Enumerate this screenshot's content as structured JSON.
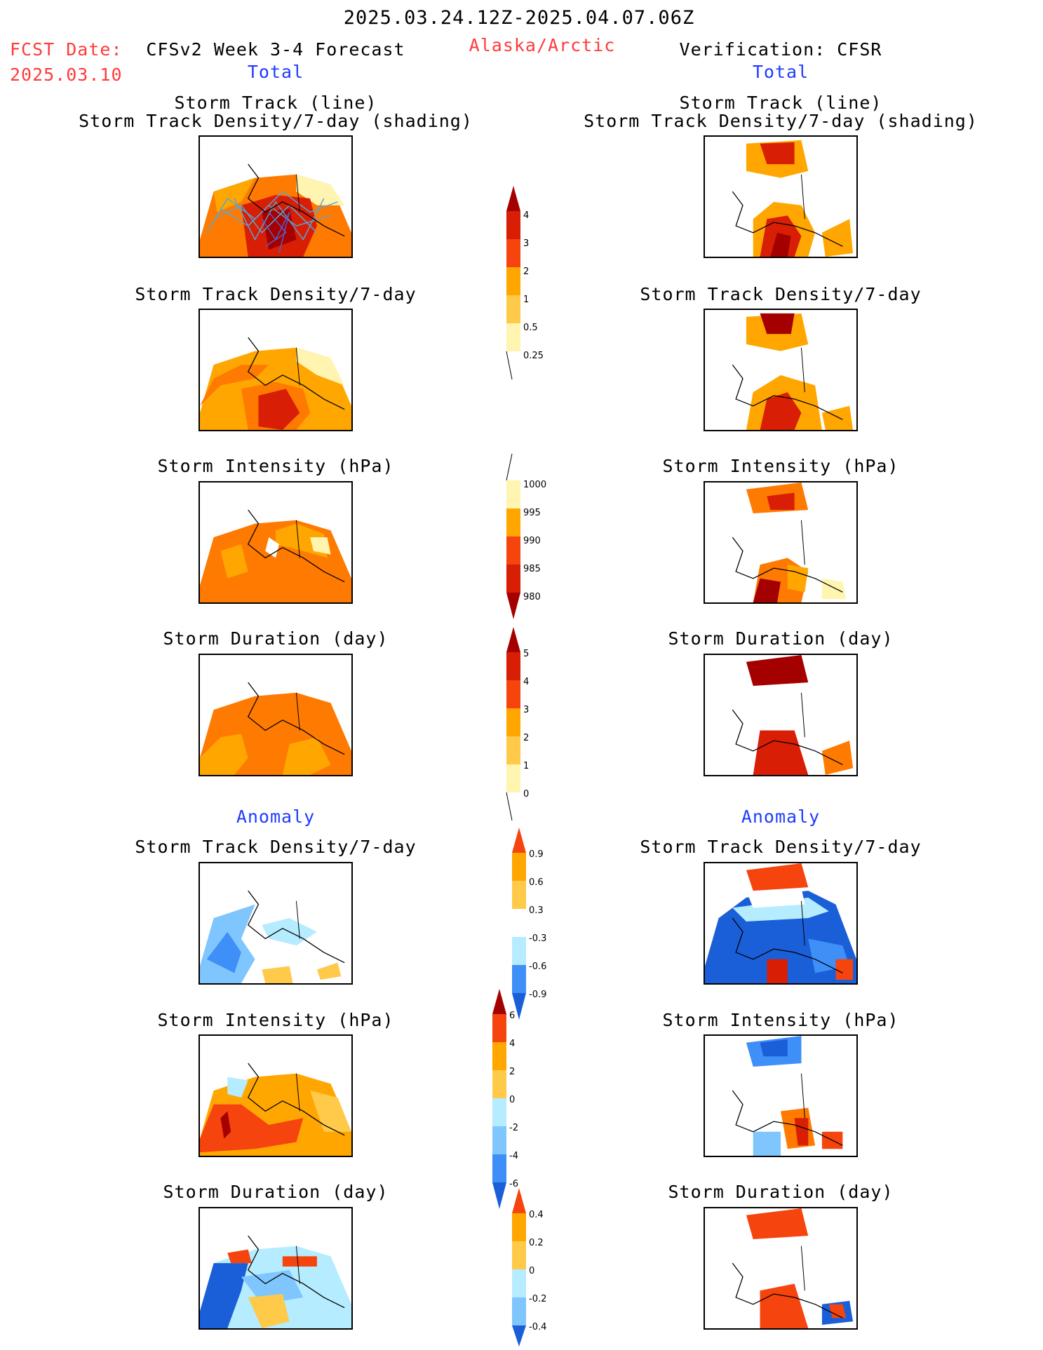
{
  "header": {
    "period": "2025.03.24.12Z-2025.04.07.06Z",
    "fcst_date_label": "FCST Date:",
    "fcst_date_value": "2025.03.10",
    "forecast_title": "CFSv2 Week 3-4 Forecast",
    "region": "Alaska/Arctic",
    "verification_title": "Verification: CFSR"
  },
  "sections": {
    "total_left": "Total",
    "total_right": "Total",
    "anomaly_left": "Anomaly",
    "anomaly_right": "Anomaly"
  },
  "panels": {
    "track_line": "Storm Track (line)",
    "track_density_shading": "Storm Track Density/7-day (shading)",
    "track_density": "Storm Track Density/7-day",
    "intensity": "Storm Intensity (hPa)",
    "duration": "Storm Duration (day)"
  },
  "colorbars": {
    "density_total": [
      "4",
      "3",
      "2",
      "1",
      "0.5",
      "0.25"
    ],
    "intensity_total": [
      "1000",
      "995",
      "990",
      "985",
      "980"
    ],
    "duration_total": [
      "5",
      "4",
      "3",
      "2",
      "1",
      "0"
    ],
    "density_anom": [
      "0.9",
      "0.6",
      "0.3",
      "-0.3",
      "-0.6",
      "-0.9"
    ],
    "intensity_anom": [
      "6",
      "4",
      "2",
      "0",
      "-2",
      "-4",
      "-6"
    ],
    "duration_anom": [
      "0.4",
      "0.2",
      "0",
      "-0.2",
      "-0.4"
    ]
  },
  "colors": {
    "darkred": "#a50000",
    "red": "#d81e05",
    "orangered": "#f5440e",
    "orange": "#ff7a00",
    "amber": "#ffa700",
    "gold": "#ffc94a",
    "lightyellow": "#fff5b0",
    "skyblue": "#b6ecff",
    "lightblue": "#7fc6ff",
    "blue": "#3e8ff7",
    "darkblue": "#1a5fd8"
  }
}
